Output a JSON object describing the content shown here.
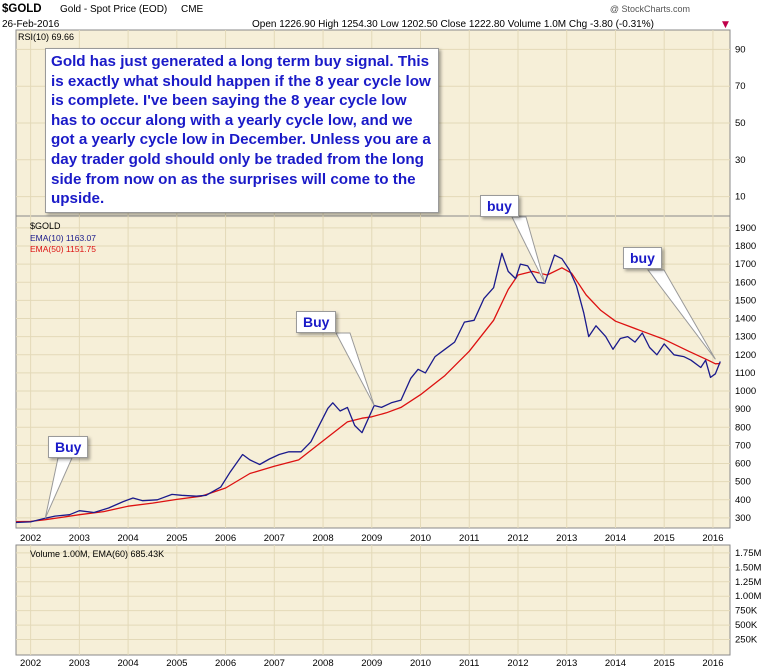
{
  "header": {
    "symbol": "$GOLD",
    "name": "Gold - Spot Price (EOD)",
    "exchange": "CME",
    "date": "26-Feb-2016",
    "watermark": "@ StockCharts.com",
    "ohlc": "Open 1226.90  High 1254.30  Low 1202.50  Close 1222.80  Volume 1.0M  Chg -3.80 (-0.31%)",
    "chg_marker": "▼"
  },
  "rsi_panel": {
    "label": "RSI(10) 69.66",
    "ticks": [
      "90",
      "70",
      "50",
      "30",
      "10"
    ]
  },
  "price_panel": {
    "label": "$GOLD",
    "legend": [
      {
        "text": "EMA(10) 1163.07",
        "color": "#1a1a8c"
      },
      {
        "text": "EMA(50) 1151.75",
        "color": "#dd1111"
      }
    ]
  },
  "volume_panel": {
    "label": "Volume 1.00M, EMA(60) 685.43K",
    "ticks": [
      "1.75M",
      "1.50M",
      "1.25M",
      "1.00M",
      "750K",
      "500K",
      "250K"
    ]
  },
  "annotations": {
    "main_text": "Gold has just generated a long term buy signal. This is exactly what should happen if the 8 year cycle low is complete. I've been saying the 8 year cycle low has to occur along with a yearly cycle low, and we got a yearly cycle low in December. Unless you are a day trader gold should only be traded from the long side from now on as the surprises will come to the upside.",
    "buy_2002": "Buy",
    "buy_2009": "Buy",
    "buy_2012": "buy",
    "buy_2016": "buy"
  },
  "chart_data": {
    "type": "line",
    "x_axis_labels": [
      "2002",
      "2003",
      "2004",
      "2005",
      "2006",
      "2007",
      "2008",
      "2009",
      "2010",
      "2011",
      "2012",
      "2013",
      "2014",
      "2015",
      "2016"
    ],
    "y_ticks": [
      300,
      400,
      500,
      600,
      700,
      800,
      900,
      1000,
      1100,
      1200,
      1300,
      1400,
      1500,
      1600,
      1700,
      1800,
      1900
    ],
    "ylim": [
      250,
      1960
    ],
    "xlim": [
      2001.7,
      2016.35
    ],
    "series": [
      {
        "name": "EMA(10)",
        "color": "#1a1a8c",
        "points": [
          [
            2001.7,
            275
          ],
          [
            2002.0,
            278
          ],
          [
            2002.3,
            298
          ],
          [
            2002.5,
            310
          ],
          [
            2002.8,
            318
          ],
          [
            2003.0,
            340
          ],
          [
            2003.3,
            330
          ],
          [
            2003.6,
            355
          ],
          [
            2003.9,
            390
          ],
          [
            2004.1,
            410
          ],
          [
            2004.3,
            395
          ],
          [
            2004.6,
            400
          ],
          [
            2004.9,
            430
          ],
          [
            2005.1,
            425
          ],
          [
            2005.4,
            420
          ],
          [
            2005.6,
            425
          ],
          [
            2005.9,
            470
          ],
          [
            2006.1,
            555
          ],
          [
            2006.35,
            650
          ],
          [
            2006.5,
            620
          ],
          [
            2006.7,
            595
          ],
          [
            2006.9,
            625
          ],
          [
            2007.1,
            650
          ],
          [
            2007.3,
            665
          ],
          [
            2007.55,
            665
          ],
          [
            2007.75,
            720
          ],
          [
            2007.9,
            800
          ],
          [
            2008.1,
            905
          ],
          [
            2008.2,
            935
          ],
          [
            2008.35,
            890
          ],
          [
            2008.5,
            910
          ],
          [
            2008.65,
            810
          ],
          [
            2008.8,
            770
          ],
          [
            2008.95,
            860
          ],
          [
            2009.05,
            920
          ],
          [
            2009.2,
            910
          ],
          [
            2009.4,
            935
          ],
          [
            2009.6,
            950
          ],
          [
            2009.8,
            1070
          ],
          [
            2009.95,
            1120
          ],
          [
            2010.1,
            1100
          ],
          [
            2010.3,
            1190
          ],
          [
            2010.5,
            1230
          ],
          [
            2010.7,
            1270
          ],
          [
            2010.9,
            1380
          ],
          [
            2011.1,
            1390
          ],
          [
            2011.3,
            1510
          ],
          [
            2011.5,
            1570
          ],
          [
            2011.67,
            1760
          ],
          [
            2011.8,
            1660
          ],
          [
            2011.95,
            1620
          ],
          [
            2012.05,
            1700
          ],
          [
            2012.2,
            1690
          ],
          [
            2012.4,
            1600
          ],
          [
            2012.55,
            1595
          ],
          [
            2012.75,
            1750
          ],
          [
            2012.9,
            1730
          ],
          [
            2013.05,
            1670
          ],
          [
            2013.2,
            1580
          ],
          [
            2013.35,
            1430
          ],
          [
            2013.45,
            1300
          ],
          [
            2013.6,
            1360
          ],
          [
            2013.8,
            1300
          ],
          [
            2013.95,
            1230
          ],
          [
            2014.1,
            1290
          ],
          [
            2014.25,
            1300
          ],
          [
            2014.4,
            1270
          ],
          [
            2014.55,
            1320
          ],
          [
            2014.7,
            1240
          ],
          [
            2014.85,
            1200
          ],
          [
            2015.0,
            1260
          ],
          [
            2015.2,
            1200
          ],
          [
            2015.4,
            1190
          ],
          [
            2015.55,
            1170
          ],
          [
            2015.75,
            1130
          ],
          [
            2015.85,
            1170
          ],
          [
            2015.95,
            1075
          ],
          [
            2016.05,
            1095
          ],
          [
            2016.15,
            1163
          ]
        ]
      },
      {
        "name": "EMA(50)",
        "color": "#dd1111",
        "points": [
          [
            2001.7,
            280
          ],
          [
            2002.0,
            281
          ],
          [
            2002.3,
            290
          ],
          [
            2002.6,
            302
          ],
          [
            2003.0,
            318
          ],
          [
            2003.5,
            335
          ],
          [
            2004.0,
            365
          ],
          [
            2004.5,
            382
          ],
          [
            2005.0,
            402
          ],
          [
            2005.5,
            420
          ],
          [
            2006.0,
            465
          ],
          [
            2006.5,
            545
          ],
          [
            2007.0,
            585
          ],
          [
            2007.5,
            620
          ],
          [
            2008.0,
            725
          ],
          [
            2008.5,
            830
          ],
          [
            2008.8,
            850
          ],
          [
            2009.0,
            858
          ],
          [
            2009.3,
            880
          ],
          [
            2009.6,
            910
          ],
          [
            2010.0,
            980
          ],
          [
            2010.5,
            1085
          ],
          [
            2011.0,
            1220
          ],
          [
            2011.5,
            1390
          ],
          [
            2011.8,
            1560
          ],
          [
            2012.0,
            1640
          ],
          [
            2012.3,
            1660
          ],
          [
            2012.6,
            1640
          ],
          [
            2012.9,
            1680
          ],
          [
            2013.1,
            1650
          ],
          [
            2013.4,
            1530
          ],
          [
            2013.7,
            1445
          ],
          [
            2014.0,
            1385
          ],
          [
            2014.5,
            1335
          ],
          [
            2015.0,
            1285
          ],
          [
            2015.5,
            1220
          ],
          [
            2015.9,
            1170
          ],
          [
            2016.05,
            1150
          ],
          [
            2016.15,
            1152
          ]
        ]
      }
    ],
    "volume_panel_ylim": [
      0,
      1.87
    ],
    "volume_ticks": [
      0.25,
      0.5,
      0.75,
      1.0,
      1.25,
      1.5,
      1.75
    ],
    "rsi_ylim": [
      0,
      100
    ],
    "rsi_ticks": [
      10,
      30,
      50,
      70,
      90
    ],
    "grid": true
  }
}
